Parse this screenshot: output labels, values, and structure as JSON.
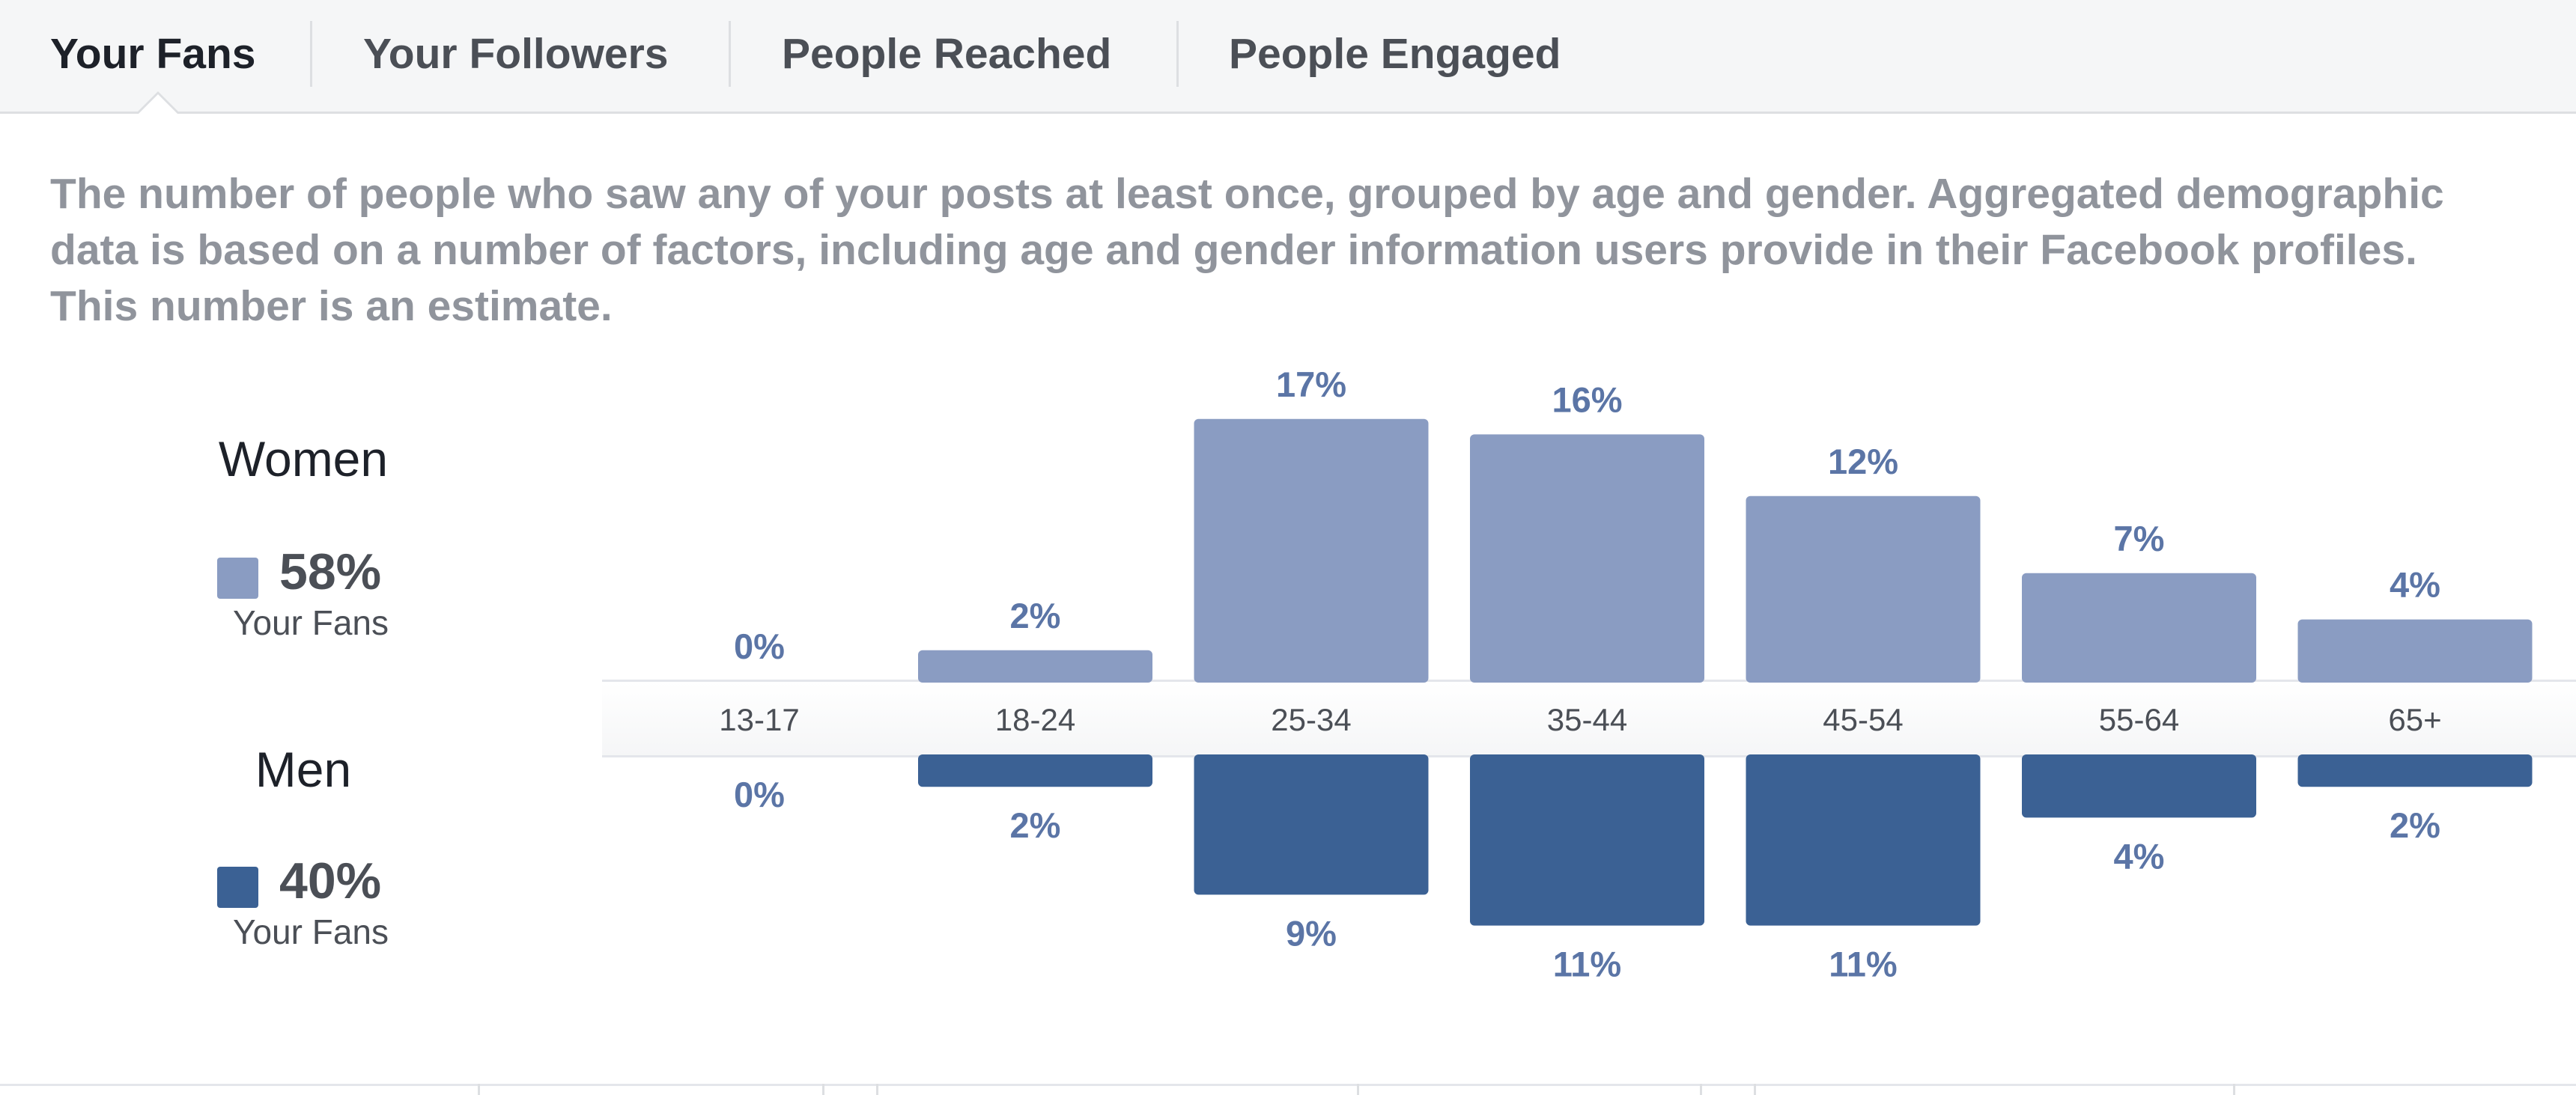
{
  "tabs": [
    {
      "label": "Your Fans",
      "active": true
    },
    {
      "label": "Your Followers",
      "active": false
    },
    {
      "label": "People Reached",
      "active": false
    },
    {
      "label": "People Engaged",
      "active": false
    }
  ],
  "description": "The number of people who saw any of your posts at least once, grouped by age and gender. Aggregated demographic data is based on a number of factors, including age and gender information users provide in their Facebook profiles. This number is an estimate.",
  "legend": {
    "women": {
      "title": "Women",
      "percent": "58%",
      "sub": "Your Fans"
    },
    "men": {
      "title": "Men",
      "percent": "40%",
      "sub": "Your Fans"
    }
  },
  "colors": {
    "women": "#8a9cc2",
    "men": "#3b6194",
    "value_label": "#5b75a6",
    "tick_label": "#4b4f56"
  },
  "chart_data": {
    "type": "bar",
    "orientation": "diverging",
    "categories": [
      "13-17",
      "18-24",
      "25-34",
      "35-44",
      "45-54",
      "55-64",
      "65+"
    ],
    "series": [
      {
        "name": "Women",
        "values": [
          0,
          2,
          17,
          16,
          12,
          7,
          4
        ],
        "labels": [
          "0%",
          "2%",
          "17%",
          "16%",
          "12%",
          "7%",
          "4%"
        ]
      },
      {
        "name": "Men",
        "values": [
          0,
          2,
          9,
          11,
          11,
          4,
          2
        ],
        "labels": [
          "0%",
          "2%",
          "9%",
          "11%",
          "11%",
          "4%",
          "2%"
        ]
      }
    ],
    "unit": "%"
  }
}
